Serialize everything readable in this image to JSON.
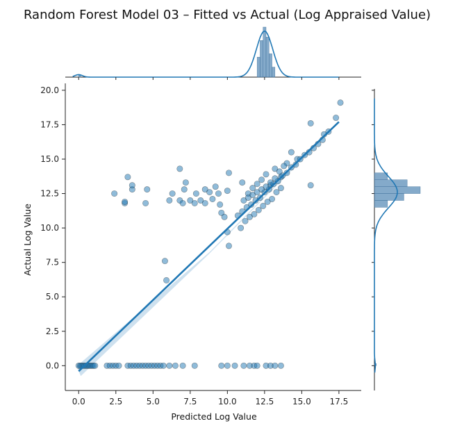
{
  "chart_data": {
    "type": "scatter",
    "title": "Random Forest Model 03 – Fitted vs Actual (Log Appraised Value)",
    "xlabel": "Predicted Log Value",
    "ylabel": "Actual Log Value",
    "xlim": [
      -0.9,
      19.0
    ],
    "ylim": [
      -1.8,
      20.5
    ],
    "xticks": [
      0.0,
      2.5,
      5.0,
      7.5,
      10.0,
      12.5,
      15.0,
      17.5
    ],
    "yticks": [
      0.0,
      2.5,
      5.0,
      7.5,
      10.0,
      12.5,
      15.0,
      17.5,
      20.0
    ],
    "xtick_labels": [
      "0.0",
      "2.5",
      "5.0",
      "7.5",
      "10.0",
      "12.5",
      "15.0",
      "17.5"
    ],
    "ytick_labels": [
      "0.0",
      "2.5",
      "5.0",
      "7.5",
      "10.0",
      "12.5",
      "15.0",
      "17.5",
      "20.0"
    ],
    "colors": {
      "points": "#1f77b4",
      "edge": "#1a1a1a",
      "line": "#1f77b4",
      "hist": "#5b8db8"
    },
    "grid": false,
    "regression_line": {
      "x": [
        0.0,
        17.5
      ],
      "y": [
        -0.4,
        17.7
      ]
    },
    "points": [
      [
        0.0,
        0.0
      ],
      [
        0.1,
        0.0
      ],
      [
        0.2,
        0.0
      ],
      [
        0.3,
        0.0
      ],
      [
        0.4,
        0.0
      ],
      [
        0.5,
        0.0
      ],
      [
        0.6,
        0.0
      ],
      [
        0.7,
        0.0
      ],
      [
        0.8,
        0.0
      ],
      [
        0.9,
        0.0
      ],
      [
        1.0,
        0.0
      ],
      [
        1.1,
        0.0
      ],
      [
        1.9,
        0.0
      ],
      [
        2.1,
        0.0
      ],
      [
        2.3,
        0.0
      ],
      [
        2.5,
        0.0
      ],
      [
        2.7,
        0.0
      ],
      [
        3.3,
        0.0
      ],
      [
        3.5,
        0.0
      ],
      [
        3.7,
        0.0
      ],
      [
        3.9,
        0.0
      ],
      [
        4.1,
        0.0
      ],
      [
        4.3,
        0.0
      ],
      [
        4.5,
        0.0
      ],
      [
        4.7,
        0.0
      ],
      [
        4.9,
        0.0
      ],
      [
        5.1,
        0.0
      ],
      [
        5.3,
        0.0
      ],
      [
        5.5,
        0.0
      ],
      [
        5.7,
        0.0
      ],
      [
        6.1,
        0.0
      ],
      [
        6.5,
        0.0
      ],
      [
        7.0,
        0.0
      ],
      [
        7.8,
        0.0
      ],
      [
        9.6,
        0.0
      ],
      [
        10.0,
        0.0
      ],
      [
        10.5,
        0.0
      ],
      [
        11.1,
        0.0
      ],
      [
        11.5,
        0.0
      ],
      [
        11.8,
        0.0
      ],
      [
        12.0,
        0.0
      ],
      [
        12.6,
        0.0
      ],
      [
        12.9,
        0.0
      ],
      [
        13.2,
        0.0
      ],
      [
        13.6,
        0.0
      ],
      [
        2.4,
        12.5
      ],
      [
        3.1,
        11.8
      ],
      [
        3.1,
        11.9
      ],
      [
        3.3,
        13.7
      ],
      [
        3.6,
        12.8
      ],
      [
        3.6,
        13.1
      ],
      [
        4.5,
        11.8
      ],
      [
        4.6,
        12.8
      ],
      [
        6.1,
        12.0
      ],
      [
        6.3,
        12.5
      ],
      [
        6.8,
        14.3
      ],
      [
        6.8,
        12.0
      ],
      [
        7.0,
        11.8
      ],
      [
        7.1,
        12.8
      ],
      [
        7.2,
        13.3
      ],
      [
        7.5,
        12.0
      ],
      [
        7.8,
        11.8
      ],
      [
        7.9,
        12.5
      ],
      [
        8.2,
        12.0
      ],
      [
        8.5,
        12.8
      ],
      [
        8.5,
        11.8
      ],
      [
        8.8,
        12.6
      ],
      [
        9.0,
        12.1
      ],
      [
        9.2,
        13.0
      ],
      [
        9.4,
        12.5
      ],
      [
        9.5,
        11.7
      ],
      [
        9.6,
        11.1
      ],
      [
        9.8,
        10.8
      ],
      [
        10.0,
        12.7
      ],
      [
        10.1,
        14.0
      ],
      [
        10.1,
        8.7
      ],
      [
        10.0,
        9.7
      ],
      [
        5.8,
        7.6
      ],
      [
        5.9,
        6.2
      ],
      [
        15.6,
        13.1
      ],
      [
        14.7,
        15.0
      ],
      [
        14.3,
        15.5
      ],
      [
        15.6,
        17.6
      ],
      [
        16.5,
        16.8
      ],
      [
        17.3,
        18.0
      ],
      [
        17.6,
        19.1
      ],
      [
        16.8,
        17.0
      ],
      [
        11.0,
        13.3
      ],
      [
        11.4,
        12.5
      ],
      [
        11.7,
        12.9
      ],
      [
        12.0,
        13.2
      ],
      [
        12.3,
        13.5
      ],
      [
        12.6,
        13.9
      ],
      [
        12.9,
        13.1
      ],
      [
        13.2,
        14.3
      ],
      [
        13.6,
        13.7
      ],
      [
        14.0,
        14.7
      ],
      [
        10.7,
        10.9
      ],
      [
        11.0,
        11.2
      ],
      [
        11.3,
        11.5
      ],
      [
        11.6,
        11.7
      ],
      [
        11.9,
        12.0
      ],
      [
        12.2,
        12.2
      ],
      [
        12.5,
        12.6
      ],
      [
        12.8,
        12.8
      ],
      [
        13.1,
        13.2
      ],
      [
        13.4,
        13.4
      ],
      [
        13.7,
        13.8
      ],
      [
        14.0,
        14.0
      ],
      [
        14.3,
        14.4
      ],
      [
        14.6,
        14.6
      ],
      [
        14.9,
        15.0
      ],
      [
        15.2,
        15.3
      ],
      [
        15.5,
        15.5
      ],
      [
        15.8,
        15.8
      ],
      [
        16.1,
        16.1
      ],
      [
        16.4,
        16.4
      ],
      [
        10.9,
        10.0
      ],
      [
        11.2,
        10.5
      ],
      [
        11.5,
        10.8
      ],
      [
        11.8,
        11.0
      ],
      [
        12.1,
        11.3
      ],
      [
        12.4,
        11.6
      ],
      [
        12.7,
        11.9
      ],
      [
        13.0,
        12.1
      ],
      [
        13.3,
        12.6
      ],
      [
        13.6,
        12.9
      ],
      [
        11.1,
        12.0
      ],
      [
        11.4,
        12.2
      ],
      [
        11.7,
        12.4
      ],
      [
        12.0,
        12.6
      ],
      [
        12.3,
        12.8
      ],
      [
        12.6,
        13.0
      ],
      [
        12.9,
        13.3
      ],
      [
        13.2,
        13.6
      ],
      [
        13.5,
        14.1
      ],
      [
        13.8,
        14.5
      ]
    ],
    "top_hist": {
      "bins": [
        0.0,
        12.0,
        12.2,
        12.4,
        12.6,
        12.8,
        13.0
      ],
      "counts": [
        3,
        30,
        55,
        75,
        60,
        35,
        15
      ]
    },
    "right_hist": {
      "bins": [
        0.0,
        11.5,
        12.0,
        12.5,
        13.0,
        13.5
      ],
      "counts": [
        3,
        20,
        45,
        70,
        50,
        20
      ]
    }
  }
}
